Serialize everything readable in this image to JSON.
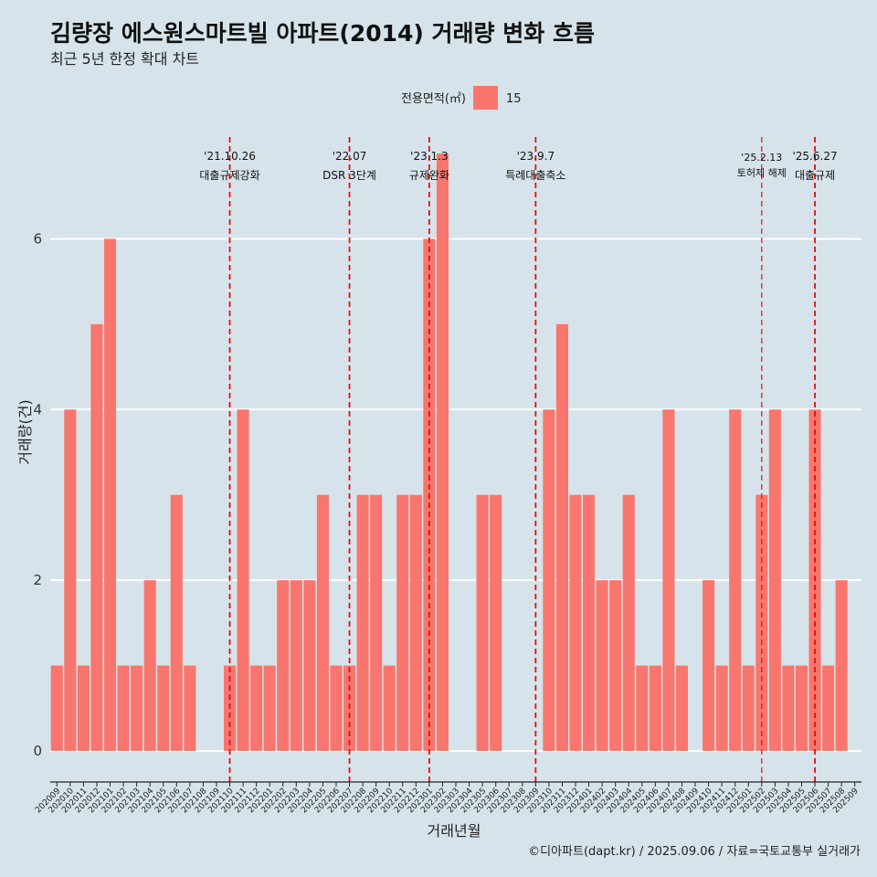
{
  "title": "김량장 에스원스마트빌 아파트(2014) 거래량 변화 흐름",
  "subtitle": "최근 5년 한정 확대 차트",
  "caption": "©디아파트(dapt.kr) / 2025.09.06 / 자료=국토교통부 실거래가",
  "colors": {
    "background": "#d6e3ea",
    "bar": "#f8766d",
    "event_line": "#e01010",
    "grid": "#ffffff"
  },
  "chart_data": {
    "type": "bar",
    "xlabel": "거래년월",
    "ylabel": "거래량(건)",
    "ylim": [
      -0.3,
      7.3
    ],
    "yticks": [
      0,
      2,
      4,
      6
    ],
    "grid": "horizontal",
    "legend": {
      "position": "top",
      "title": "전용면적(㎡)",
      "entries": [
        "15"
      ]
    },
    "categories": [
      "202009",
      "202010",
      "202011",
      "202012",
      "202101",
      "202102",
      "202103",
      "202104",
      "202105",
      "202106",
      "202107",
      "202108",
      "202109",
      "202110",
      "202111",
      "202112",
      "202201",
      "202202",
      "202203",
      "202204",
      "202205",
      "202206",
      "202207",
      "202208",
      "202209",
      "202210",
      "202211",
      "202212",
      "202301",
      "202302",
      "202303",
      "202304",
      "202305",
      "202306",
      "202307",
      "202308",
      "202309",
      "202310",
      "202311",
      "202312",
      "202401",
      "202402",
      "202403",
      "202404",
      "202405",
      "202406",
      "202407",
      "202408",
      "202409",
      "202410",
      "202411",
      "202412",
      "202501",
      "202502",
      "202503",
      "202504",
      "202505",
      "202506",
      "202507",
      "202508",
      "202509"
    ],
    "series": [
      {
        "name": "15",
        "values": [
          1,
          4,
          1,
          5,
          6,
          1,
          1,
          2,
          1,
          3,
          1,
          0,
          0,
          1,
          4,
          1,
          1,
          2,
          2,
          2,
          3,
          1,
          1,
          3,
          3,
          1,
          3,
          3,
          6,
          7,
          0,
          0,
          3,
          3,
          0,
          0,
          0,
          4,
          5,
          3,
          3,
          2,
          2,
          3,
          1,
          1,
          4,
          1,
          0,
          2,
          1,
          4,
          1,
          3,
          4,
          1,
          1,
          4,
          1,
          2,
          0
        ]
      }
    ],
    "events": [
      {
        "date": "'21.10.26",
        "label": "대출규제강화",
        "category": "202110"
      },
      {
        "date": "'22.07",
        "label": "DSR 3단계",
        "category": "202207"
      },
      {
        "date": "'23.1.3",
        "label": "규제완화",
        "category": "202301"
      },
      {
        "date": "'23.9.7",
        "label": "특례대출축소",
        "category": "202309"
      },
      {
        "date": "'25.2.13",
        "label": "토허제 해제",
        "category": "202502"
      },
      {
        "date": "'25.6.27",
        "label": "대출규제",
        "category": "202506"
      }
    ]
  }
}
